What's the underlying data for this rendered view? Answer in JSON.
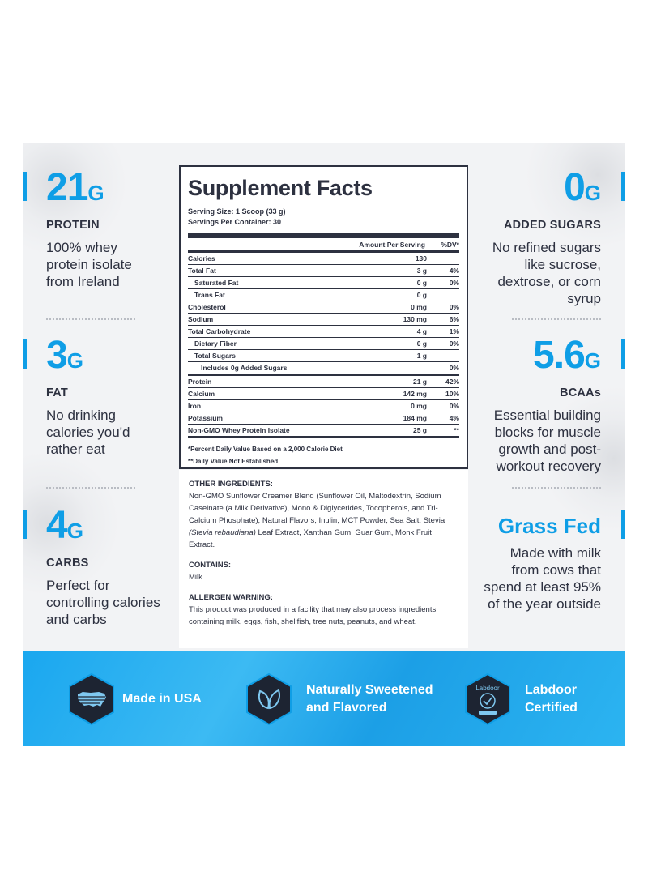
{
  "left": [
    {
      "value": "21",
      "unit": "G",
      "label": "PROTEIN",
      "desc": [
        "100% whey",
        "protein isolate",
        "from Ireland"
      ]
    },
    {
      "value": "3",
      "unit": "G",
      "label": "FAT",
      "desc": [
        "No drinking",
        "calories you'd",
        "rather eat"
      ]
    },
    {
      "value": "4",
      "unit": "G",
      "label": "CARBS",
      "desc": [
        "Perfect for",
        "controlling calories",
        "and carbs"
      ]
    }
  ],
  "right": [
    {
      "value": "0",
      "unit": "G",
      "label": "ADDED SUGARS",
      "desc": [
        "No refined sugars",
        "like sucrose,",
        "dextrose, or corn",
        "syrup"
      ]
    },
    {
      "value": "5.6",
      "unit": "G",
      "label": "BCAAs",
      "desc": [
        "Essential building",
        "blocks for muscle",
        "growth and post-",
        "workout recovery"
      ]
    },
    {
      "value": "Grass Fed",
      "unit": "",
      "label": "",
      "desc": [
        "Made with milk",
        "from cows that",
        "spend at least 95%",
        "of the year outside"
      ]
    }
  ],
  "facts": {
    "title": "Supplement Facts",
    "serving_size": "Serving Size: 1 Scoop (33 g)",
    "servings": "Servings Per Container: 30",
    "col_amount": "Amount Per Serving",
    "col_dv": "%DV*",
    "rows": [
      {
        "name": "Calories",
        "amount": "130",
        "dv": ""
      },
      {
        "name": "Total Fat",
        "amount": "3 g",
        "dv": "4%"
      },
      {
        "name": "Saturated Fat",
        "amount": "0 g",
        "dv": "0%"
      },
      {
        "name": "Trans Fat",
        "amount": "0 g",
        "dv": ""
      },
      {
        "name": "Cholesterol",
        "amount": "0 mg",
        "dv": "0%"
      },
      {
        "name": "Sodium",
        "amount": "130 mg",
        "dv": "6%"
      },
      {
        "name": "Total Carbohydrate",
        "amount": "4 g",
        "dv": "1%"
      },
      {
        "name": "Dietary Fiber",
        "amount": "0 g",
        "dv": "0%"
      },
      {
        "name": "Total Sugars",
        "amount": "1 g",
        "dv": ""
      },
      {
        "name": "Includes 0g Added Sugars",
        "amount": "",
        "dv": "0%"
      },
      {
        "name": "Protein",
        "amount": "21 g",
        "dv": "42%"
      },
      {
        "name": "Calcium",
        "amount": "142 mg",
        "dv": "10%"
      },
      {
        "name": "Iron",
        "amount": "0 mg",
        "dv": "0%"
      },
      {
        "name": "Potassium",
        "amount": "184 mg",
        "dv": "4%"
      },
      {
        "name": "Non-GMO Whey Protein Isolate",
        "amount": "25 g",
        "dv": "**"
      }
    ],
    "foot1": "*Percent Daily Value Based on a 2,000 Calorie Diet",
    "foot2": "**Daily Value Not Established"
  },
  "ingredients": {
    "head": "OTHER INGREDIENTS:",
    "text_a": "Non-GMO Sunflower Creamer Blend (Sunflower Oil, Maltodextrin, Sodium Caseinate (a Milk Derivative), Mono & Diglycerides, Tocopherols, and Tri-Calcium Phosphate), Natural Flavors, Inulin, MCT Powder, Sea Salt, Stevia ",
    "text_italic": "(Stevia rebaudiana)",
    "text_b": " Leaf Extract, Xanthan Gum, Guar Gum, Monk Fruit Extract.",
    "contains_head": "CONTAINS:",
    "contains": "Milk",
    "allergen_head": "ALLERGEN WARNING:",
    "allergen": "This product was produced in a facility that may also process ingredients containing milk, eggs, fish, shellfish, tree nuts, peanuts, and wheat."
  },
  "badges": [
    {
      "icon": "usa-map-icon",
      "line1": "Made in USA",
      "line2": ""
    },
    {
      "icon": "leaves-icon",
      "line1": "Naturally Sweetened",
      "line2": "and Flavored"
    },
    {
      "icon": "labdoor-icon",
      "line1": "Labdoor",
      "line2": "Certified",
      "logo_text": "Labdoor"
    }
  ],
  "colors": {
    "accent": "#0f9ee6",
    "dark": "#2d3140",
    "band": "#1aa7ef"
  }
}
